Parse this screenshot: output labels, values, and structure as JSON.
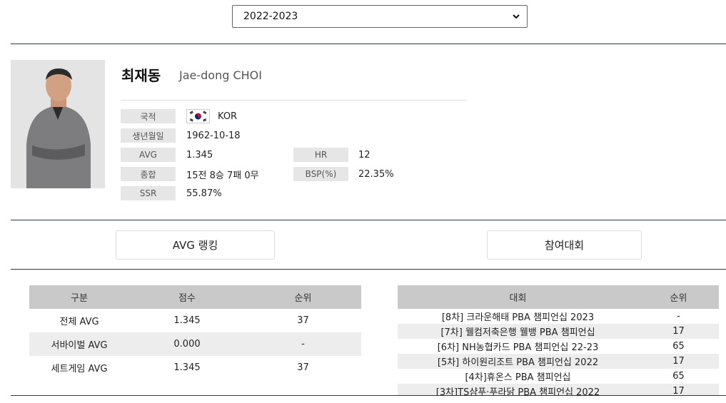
{
  "season_select": {
    "value": "2022-2023"
  },
  "player": {
    "name_ko": "최재동",
    "name_en": "Jae-dong CHOI",
    "nationality_label": "국적",
    "nationality": "KOR",
    "birth_label": "생년월일",
    "birth": "1962-10-18",
    "avg_label": "AVG",
    "avg": "1.345",
    "hr_label": "HR",
    "hr": "12",
    "record_label": "종합",
    "record": "15전 8승 7패 0무",
    "bsp_label": "BSP(%)",
    "bsp": "22.35%",
    "ssr_label": "SSR",
    "ssr": "55.87%"
  },
  "tabs": {
    "avg_ranking": "AVG 랭킹",
    "tournaments": "참여대회"
  },
  "avg_table": {
    "headers": [
      "구분",
      "점수",
      "순위"
    ],
    "rows": [
      [
        "전체 AVG",
        "1.345",
        "37"
      ],
      [
        "서바이벌 AVG",
        "0.000",
        "-"
      ],
      [
        "세트게임 AVG",
        "1.345",
        "37"
      ]
    ]
  },
  "tournament_table": {
    "headers": [
      "대회",
      "순위"
    ],
    "rows": [
      [
        "[8차] 크라운해태 PBA 챔피언십 2023",
        "-"
      ],
      [
        "[7차] 웰컴저축은행 웰뱅 PBA 챔피언십",
        "17"
      ],
      [
        "[6차] NH농협카드 PBA 챔피언십 22-23",
        "65"
      ],
      [
        "[5차] 하이원리조트 PBA 챔피언십 2022",
        "17"
      ],
      [
        "[4차]휴온스 PBA 챔피언십",
        "65"
      ],
      [
        "[3차]TS샴푸·푸라닭 PBA 챔피언십 2022",
        "17"
      ]
    ]
  },
  "colors": {
    "divider": "#1f3b4d",
    "label_bg": "#e6e6e6",
    "header_bg": "#c9c9c9"
  }
}
